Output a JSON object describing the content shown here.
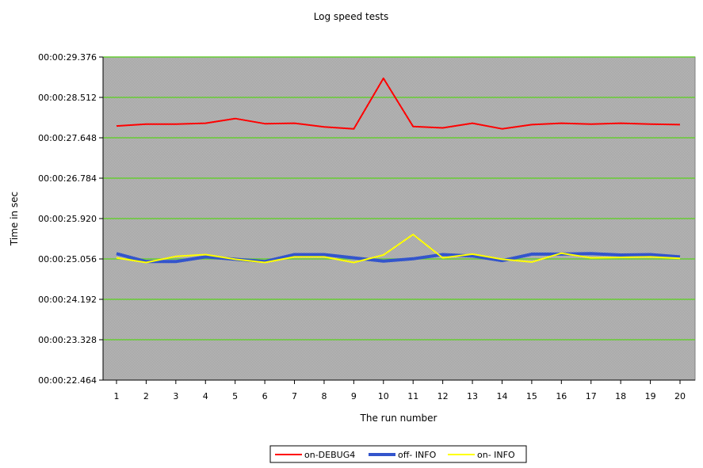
{
  "chart_data": {
    "type": "line",
    "title": "Log speed tests",
    "xlabel": "The run number",
    "ylabel": "Time in sec",
    "categories": [
      "1",
      "2",
      "3",
      "4",
      "5",
      "6",
      "7",
      "8",
      "9",
      "10",
      "11",
      "12",
      "13",
      "14",
      "15",
      "16",
      "17",
      "18",
      "19",
      "20"
    ],
    "y_ticks": [
      "00:00:22.464",
      "00:00:23.328",
      "00:00:24.192",
      "00:00:25.056",
      "00:00:25.920",
      "00:00:26.784",
      "00:00:27.648",
      "00:00:28.512",
      "00:00:29.376"
    ],
    "ylim_seconds": [
      22.464,
      29.376
    ],
    "grid": true,
    "legend_position": "bottom",
    "series": [
      {
        "name": "on-DEBUG4",
        "color": "#ff0000",
        "values": [
          27.9,
          27.94,
          27.94,
          27.96,
          28.06,
          27.95,
          27.96,
          27.88,
          27.84,
          28.92,
          27.89,
          27.86,
          27.96,
          27.84,
          27.93,
          27.96,
          27.94,
          27.96,
          27.94,
          27.93
        ]
      },
      {
        "name": "off- INFO",
        "color": "#3355cc",
        "values": [
          25.17,
          25.0,
          25.0,
          25.1,
          25.05,
          25.0,
          25.15,
          25.15,
          25.08,
          25.01,
          25.06,
          25.15,
          25.12,
          25.02,
          25.16,
          25.16,
          25.17,
          25.14,
          25.15,
          25.1
        ]
      },
      {
        "name": "on- INFO",
        "color": "#ffff00",
        "values": [
          25.08,
          24.98,
          25.11,
          25.15,
          25.05,
          24.98,
          25.1,
          25.1,
          24.98,
          25.14,
          25.58,
          25.08,
          25.16,
          25.05,
          24.99,
          25.18,
          25.08,
          25.09,
          25.1,
          25.07
        ]
      }
    ]
  }
}
